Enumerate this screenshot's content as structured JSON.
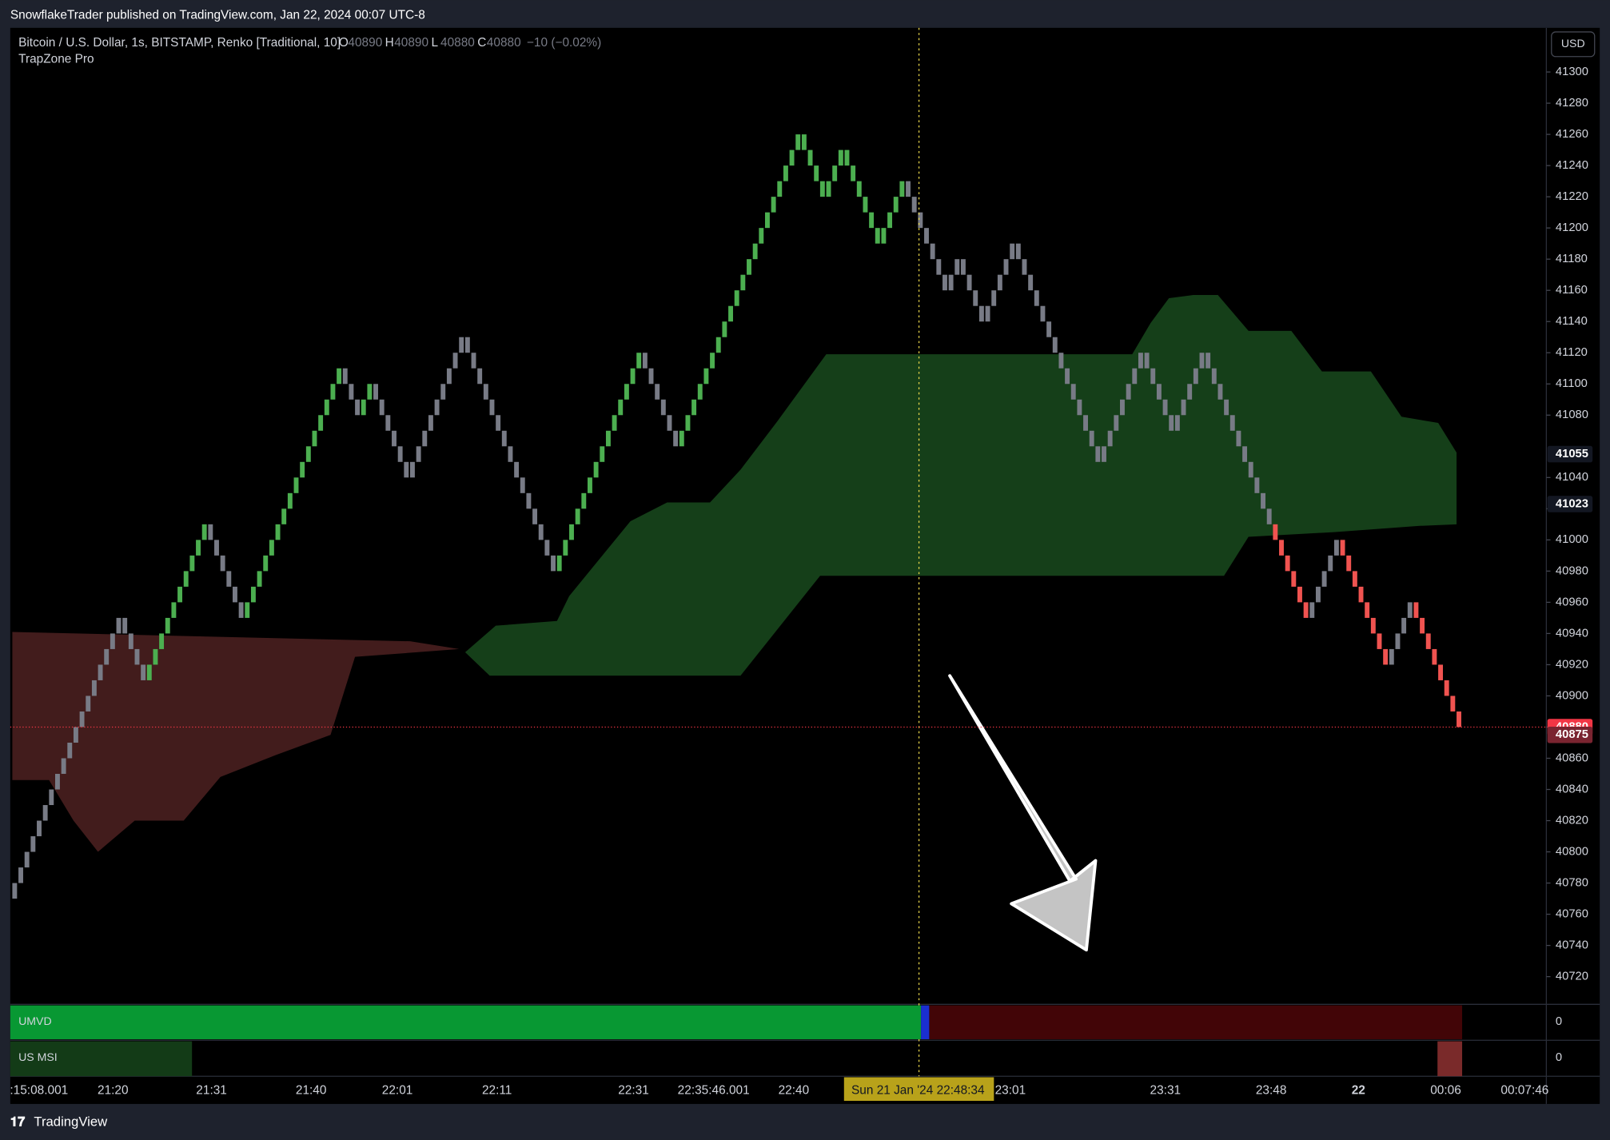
{
  "header": "SnowflakeTrader published on TradingView.com, Jan 22, 2024 00:07 UTC-8",
  "footer": "TradingView",
  "chart_data": {
    "type": "renko",
    "legend": {
      "symbol": "Bitcoin / U.S. Dollar, 1s, BITSTAMP, Renko [Traditional, 10]",
      "ohlc": [
        {
          "label": "O",
          "value": 40890
        },
        {
          "label": "H",
          "value": 40890
        },
        {
          "label": "L",
          "value": 40880
        },
        {
          "label": "C",
          "value": 40880
        }
      ],
      "change": "−10 (−0.02%)",
      "indicator": "TrapZone Pro"
    },
    "currency": "USD",
    "brick_size": 10,
    "start": 40770,
    "legs": [
      {
        "to": 40950,
        "color": "#787b86"
      },
      {
        "to": 40910,
        "color": "#787b86"
      },
      {
        "to": 41010,
        "color": "#4caf50"
      },
      {
        "to": 40950,
        "color": "#787b86"
      },
      {
        "to": 41110,
        "color": "#4caf50"
      },
      {
        "to": 41080,
        "color": "#787b86"
      },
      {
        "to": 41100,
        "color": "#4caf50"
      },
      {
        "to": 41040,
        "color": "#787b86"
      },
      {
        "to": 41130,
        "color": "#787b86"
      },
      {
        "to": 40980,
        "color": "#787b86"
      },
      {
        "to": 41120,
        "color": "#4caf50"
      },
      {
        "to": 41060,
        "color": "#787b86"
      },
      {
        "to": 41260,
        "color": "#4caf50"
      },
      {
        "to": 41220,
        "color": "#4caf50"
      },
      {
        "to": 41250,
        "color": "#4caf50"
      },
      {
        "to": 41190,
        "color": "#4caf50"
      },
      {
        "to": 41230,
        "color": "#4caf50"
      },
      {
        "to": 41160,
        "color": "#787b86"
      },
      {
        "to": 41180,
        "color": "#787b86"
      },
      {
        "to": 41140,
        "color": "#787b86"
      },
      {
        "to": 41190,
        "color": "#787b86"
      },
      {
        "to": 41050,
        "color": "#787b86"
      },
      {
        "to": 41120,
        "color": "#787b86"
      },
      {
        "to": 41070,
        "color": "#787b86"
      },
      {
        "to": 41120,
        "color": "#787b86"
      },
      {
        "to": 41010,
        "color": "#787b86"
      },
      {
        "to": 40950,
        "color": "#f05350"
      },
      {
        "to": 41000,
        "color": "#787b86"
      },
      {
        "to": 40920,
        "color": "#f05350"
      },
      {
        "to": 40960,
        "color": "#787b86"
      },
      {
        "to": 40880,
        "color": "#f05350"
      }
    ],
    "zones": [
      {
        "color": "#421c1c",
        "x": [
          0,
          65,
          73,
          56,
          52,
          43,
          34,
          28,
          20,
          14,
          10,
          6,
          0
        ],
        "price": [
          40941,
          40935,
          40930,
          40925,
          40875,
          40862,
          40848,
          40820,
          40820,
          40800,
          40820,
          40846,
          40846
        ]
      },
      {
        "color": "#153f19",
        "x": [
          74,
          79,
          89,
          91,
          101,
          107,
          114,
          119,
          125,
          133,
          183,
          186,
          189,
          193,
          197,
          202,
          209,
          214,
          222,
          227,
          233,
          236,
          236,
          230,
          216,
          202,
          198,
          132,
          119,
          78
        ],
        "price": [
          40928,
          40945,
          40948,
          40964,
          41012,
          41024,
          41024,
          41045,
          41076,
          41119,
          41119,
          41139,
          41155,
          41157,
          41157,
          41134,
          41134,
          41108,
          41108,
          41079,
          41075,
          41056,
          41010,
          41009,
          41005,
          41002,
          40977,
          40977,
          40913,
          40913
        ]
      }
    ],
    "ylim": [
      40720,
      41300
    ],
    "yticks": [
      40720,
      40740,
      40760,
      40780,
      40800,
      40820,
      40840,
      40860,
      40880,
      40900,
      40920,
      40940,
      40960,
      40980,
      41000,
      41020,
      41040,
      41080,
      41100,
      41120,
      41140,
      41160,
      41180,
      41200,
      41220,
      41240,
      41260,
      41280,
      41300
    ],
    "price_labels": [
      {
        "value": 41055,
        "color": "#131722"
      },
      {
        "value": 41023,
        "color": "#131722"
      },
      {
        "value": 40880,
        "color": "#f23645"
      },
      {
        "value": 40875,
        "color": "#7a2430"
      }
    ],
    "last_price": 40880,
    "x_labels": [
      ":15:08.001",
      "21:20",
      "21:31",
      "21:40",
      "22:01",
      "22:11",
      "22:31",
      "22:35:46.001",
      "22:40",
      "Sun 21 Jan '24   22:48:34",
      "23:01",
      "23:31",
      "23:48",
      "22",
      "00:06",
      "00:07:46"
    ],
    "panes": [
      {
        "name": "UMVD",
        "value": 0
      },
      {
        "name": "US MSI",
        "value": 0
      }
    ]
  }
}
